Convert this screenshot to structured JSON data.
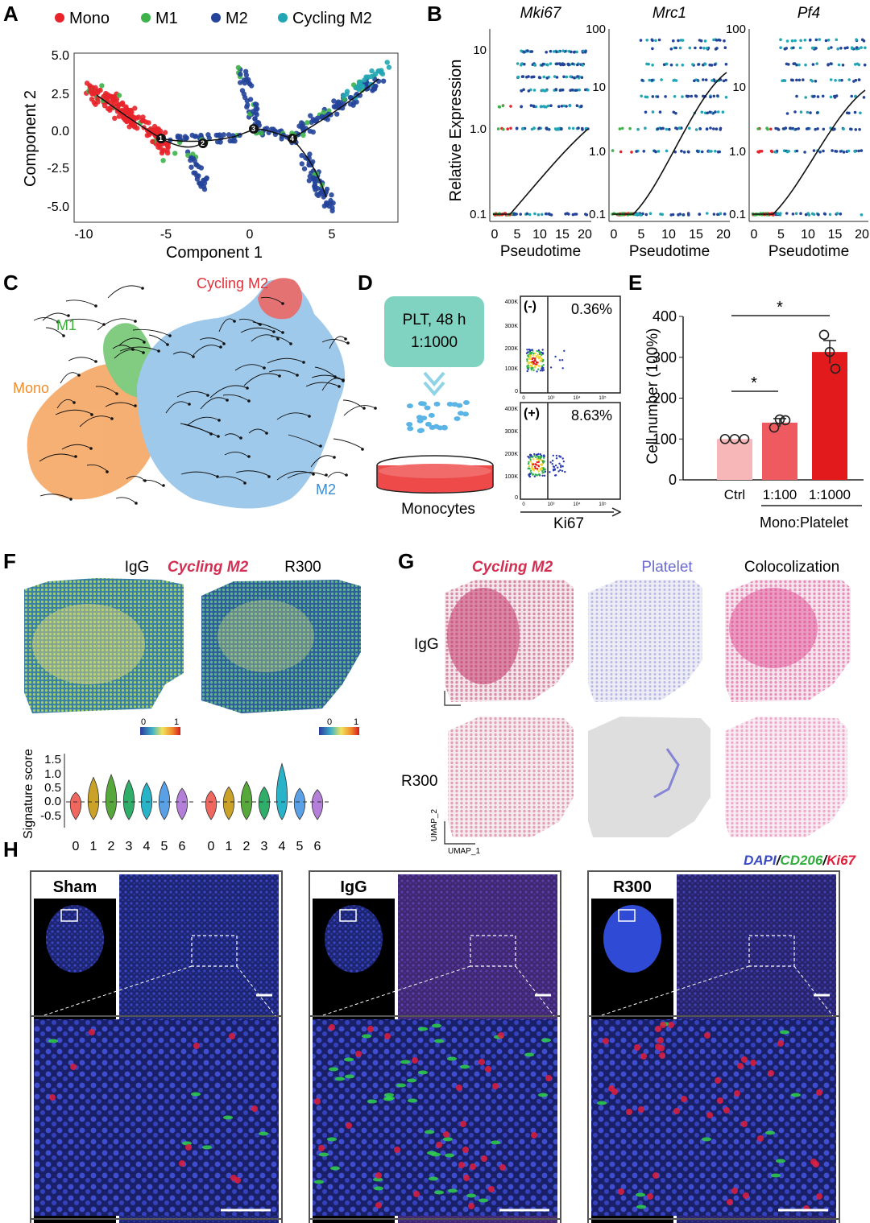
{
  "panels": {
    "A": "A",
    "B": "B",
    "C": "C",
    "D": "D",
    "E": "E",
    "F": "F",
    "G": "G",
    "H": "H"
  },
  "colors": {
    "mono": "#e8232a",
    "m1": "#3db24a",
    "m2": "#24449a",
    "cycling": "#22a6b3",
    "orange": "#f28c2a",
    "lightblue": "#7bb5e0",
    "red_bar": "#e31a1c",
    "teal_box": "#7fd3c0",
    "pink": "#d63c6e",
    "violet": "#7a7ad6",
    "dapi": "#3a49c4",
    "cd206": "#2fd14a",
    "ki67": "#e01e3c"
  },
  "panelA": {
    "legend": [
      {
        "label": "Mono",
        "color": "#e8232a"
      },
      {
        "label": "M1",
        "color": "#3db24a"
      },
      {
        "label": "M2",
        "color": "#24449a"
      },
      {
        "label": "Cycling M2",
        "color": "#22a6b3"
      }
    ],
    "xlabel": "Component 1",
    "ylabel": "Component 2",
    "xticks": [
      "-10",
      "-5",
      "0",
      "5"
    ],
    "yticks": [
      "5.0",
      "2.5",
      "0.0",
      "-2.5",
      "-5.0"
    ],
    "branch_points": [
      "1",
      "2",
      "3",
      "4"
    ]
  },
  "panelB": {
    "ylabel": "Relative Expression",
    "xlabel": "Pseudotime",
    "xticks": [
      "0",
      "5",
      "10",
      "15",
      "20"
    ],
    "genes": [
      {
        "name": "Mki67",
        "yticks": [
          "10",
          "1.0",
          "0.1"
        ]
      },
      {
        "name": "Mrc1",
        "yticks": [
          "100",
          "10",
          "1.0",
          "0.1"
        ]
      },
      {
        "name": "Pf4",
        "yticks": [
          "100",
          "10",
          "1.0",
          "0.1"
        ]
      }
    ]
  },
  "panelC": {
    "labels": {
      "cycling": "Cycling M2",
      "m1": "M1",
      "mono": "Mono",
      "m2": "M2"
    }
  },
  "panelD": {
    "box_line1": "PLT, 48 h",
    "box_line2": "1:1000",
    "dish_label": "Monocytes",
    "flow_top": {
      "sign": "(-)",
      "pct": "0.36%"
    },
    "flow_bottom": {
      "sign": "(+)",
      "pct": "8.63%"
    },
    "flow_yticks": [
      "400K",
      "300K",
      "200K",
      "100K",
      "0"
    ],
    "flow_xticks": [
      "0",
      "10³",
      "10⁴",
      "10⁵"
    ],
    "xlabel": "Ki67"
  },
  "panelE": {
    "ylabel": "Cell number (100%)",
    "yticks": [
      "400",
      "300",
      "200",
      "100",
      "0"
    ],
    "group_label": "Mono:Platelet",
    "sig": "*",
    "bars": [
      {
        "label": "Ctrl",
        "value": 100,
        "err": 0,
        "color": "#f7b6b8",
        "pts": [
          100,
          100,
          100
        ]
      },
      {
        "label": "1:100",
        "value": 140,
        "err": 10,
        "color": "#ee5a5f",
        "pts": [
          128,
          148,
          146
        ]
      },
      {
        "label": "1:1000",
        "value": 313,
        "err": 28,
        "color": "#e31a1c",
        "pts": [
          355,
          313,
          272
        ]
      }
    ]
  },
  "panelF": {
    "title_left": "IgG",
    "title_mid": "Cycling M2",
    "title_right": "R300",
    "cbar_min": "0",
    "cbar_max": "1",
    "ylabel": "Signature score",
    "yticks": [
      "1.5",
      "1.0",
      "0.5",
      "0.0",
      "-0.5"
    ],
    "clusters": [
      "0",
      "1",
      "2",
      "3",
      "4",
      "5",
      "6"
    ],
    "violin_colors": [
      "#f0675f",
      "#c9a227",
      "#57a83a",
      "#2fae6a",
      "#28b3c9",
      "#5aa0e6",
      "#b47fd9"
    ]
  },
  "panelG": {
    "titles": [
      "Cycling M2",
      "Platelet",
      "Colocolization"
    ],
    "rows": [
      "IgG",
      "R300"
    ],
    "axis_y": "UMAP_2",
    "axis_x": "UMAP_1"
  },
  "panelH": {
    "legend": [
      "DAPI",
      "CD206",
      "Ki67"
    ],
    "groups": [
      "Sham",
      "IgG",
      "R300"
    ]
  }
}
